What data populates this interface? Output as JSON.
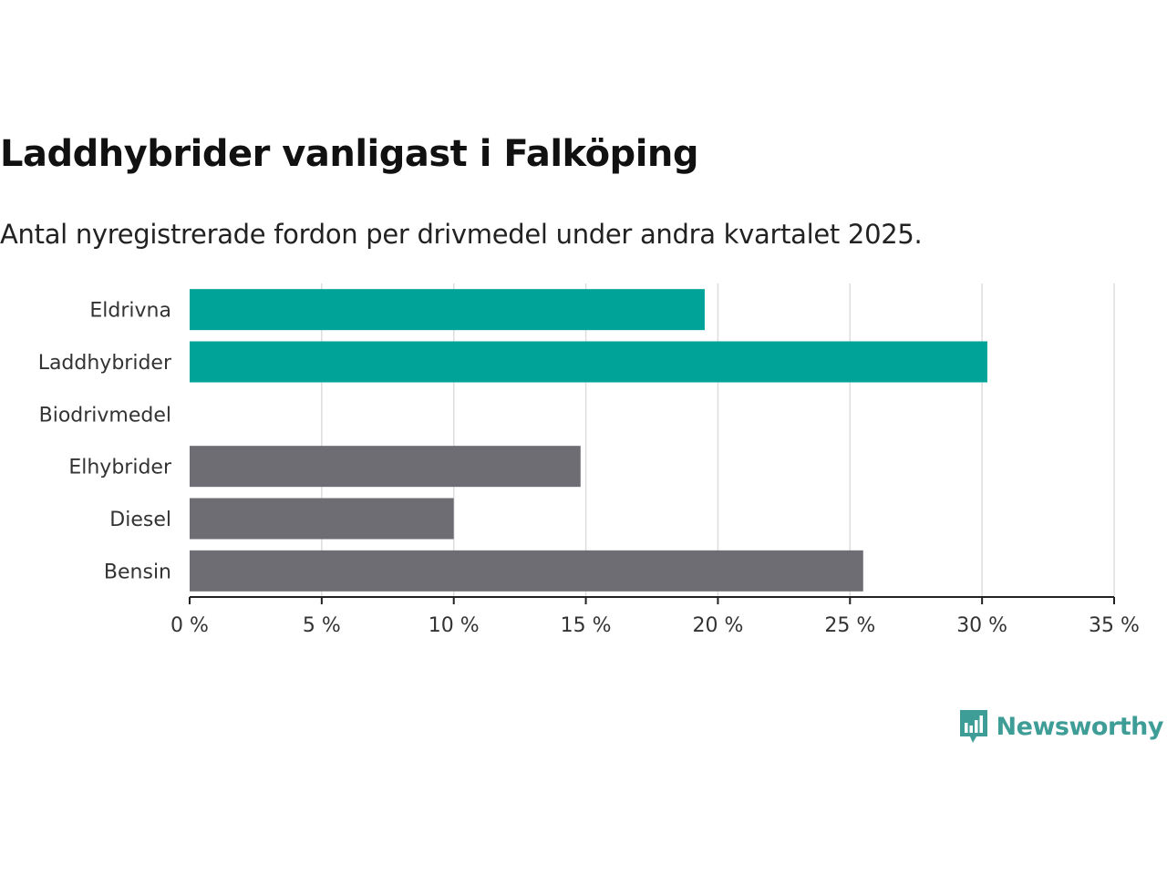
{
  "header": {
    "title": "Laddhybrider vanligast i Falköping",
    "subtitle": "Antal nyregistrerade fordon per drivmedel under andra kvartalet 2025."
  },
  "brand": {
    "name": "Newsworthy",
    "logo_icon": "bar-chart-speech-bubble-icon",
    "color": "#3f9d97"
  },
  "chart_data": {
    "type": "bar",
    "orientation": "horizontal",
    "categories": [
      "Eldrivna",
      "Laddhybrider",
      "Biodrivmedel",
      "Elhybrider",
      "Diesel",
      "Bensin"
    ],
    "values": [
      19.5,
      30.2,
      0,
      14.8,
      10.0,
      25.5
    ],
    "colors": [
      "#00a398",
      "#00a398",
      "#00a398",
      "#6e6d73",
      "#6e6d73",
      "#6e6d73"
    ],
    "xlim": [
      0,
      35
    ],
    "xticks": [
      0,
      5,
      10,
      15,
      20,
      25,
      30,
      35
    ],
    "xtick_labels": [
      "0 %",
      "5 %",
      "10 %",
      "15 %",
      "20 %",
      "25 %",
      "30 %",
      "35 %"
    ],
    "xlabel": "",
    "ylabel": "",
    "grid": "vertical"
  }
}
